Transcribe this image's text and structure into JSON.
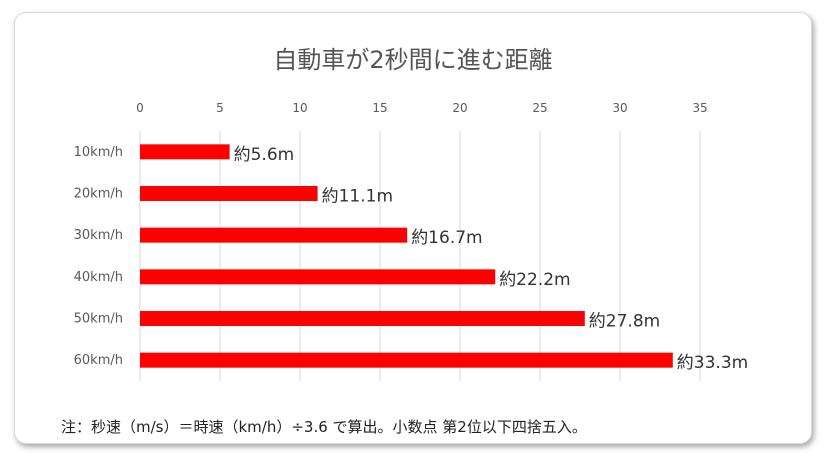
{
  "chart_data": {
    "type": "bar",
    "orientation": "horizontal",
    "title": "自動車が2秒間に進む距離",
    "categories": [
      "10km/h",
      "20km/h",
      "30km/h",
      "40km/h",
      "50km/h",
      "60km/h"
    ],
    "series": [
      {
        "values": [
          5.6,
          11.1,
          16.7,
          22.2,
          27.8,
          33.3
        ],
        "data_labels": [
          "約5.6m",
          "約11.1m",
          "約16.7m",
          "約22.2m",
          "約27.8m",
          "約33.3m"
        ],
        "color": "#ff0000"
      }
    ],
    "x_ticks": [
      "0",
      "5",
      "10",
      "15",
      "20",
      "25",
      "30",
      "35"
    ],
    "xlim": [
      0,
      35
    ],
    "x_axis_position": "top",
    "grid": true,
    "legend": "none"
  },
  "note": "注：秒速（m/s）＝時速（km/h）÷3.6 で算出。小数点 第2位以下四捨五入。",
  "colors": {
    "bar": "#ff0000",
    "grid": "#d9d9d9",
    "text": "#595959"
  }
}
